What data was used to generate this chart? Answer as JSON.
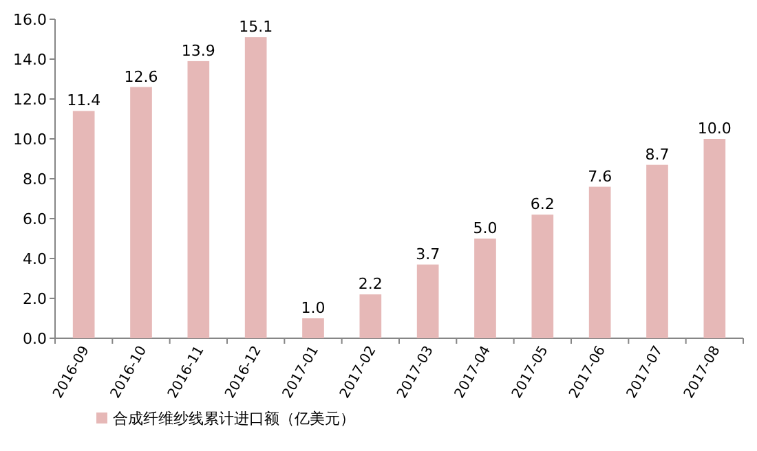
{
  "chart_data": {
    "type": "bar",
    "categories": [
      "2016-09",
      "2016-10",
      "2016-11",
      "2016-12",
      "2017-01",
      "2017-02",
      "2017-03",
      "2017-04",
      "2017-05",
      "2017-06",
      "2017-07",
      "2017-08"
    ],
    "series": [
      {
        "name": "合成纤维纱线累计进口额（亿美元）",
        "color": "#e6b8b7",
        "values": [
          11.4,
          12.6,
          13.9,
          15.1,
          1.0,
          2.2,
          3.7,
          5.0,
          6.2,
          7.6,
          8.7,
          10.0
        ],
        "value_labels": [
          "11.4",
          "12.6",
          "13.9",
          "15.1",
          "1.0",
          "2.2",
          "3.7",
          "5.0",
          "6.2",
          "7.6",
          "8.7",
          "10.0"
        ]
      }
    ],
    "ylim": [
      0,
      16
    ],
    "yticks": [
      {
        "value": 0,
        "label": "0.0"
      },
      {
        "value": 2,
        "label": "2.0"
      },
      {
        "value": 4,
        "label": "4.0"
      },
      {
        "value": 6,
        "label": "6.0"
      },
      {
        "value": 8,
        "label": "8.0"
      },
      {
        "value": 10,
        "label": "10.0"
      },
      {
        "value": 12,
        "label": "12.0"
      },
      {
        "value": 14,
        "label": "14.0"
      },
      {
        "value": 16,
        "label": "16.0"
      }
    ],
    "grid": false,
    "legend": "bottom"
  }
}
